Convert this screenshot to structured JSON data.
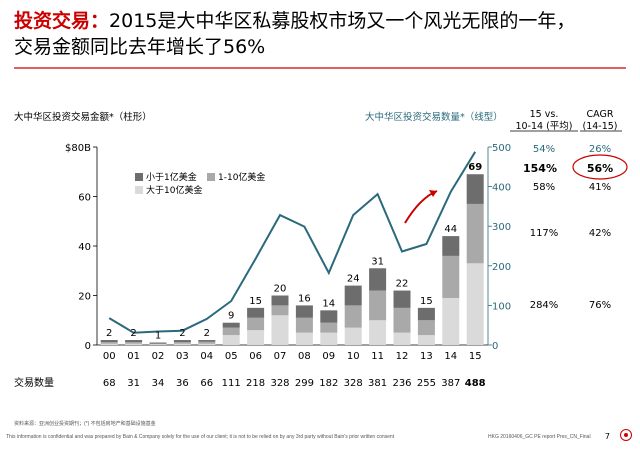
{
  "title": {
    "label": "投资交易：",
    "line1": "2015是大中华区私募股权市场又一个风光无限的一年，",
    "line2": "交易金额同比去年增长了56%"
  },
  "left_axis_title": "大中华区投资交易金额*（柱形）",
  "right_axis_title": "大中华区投资交易数量*（线型）",
  "columns": {
    "col1_header": "15 vs. 10-14 (平均)",
    "col2_header": "CAGR (14-15)",
    "rows": [
      {
        "a": "54%",
        "b": "26%"
      },
      {
        "a": "154%",
        "b": "56%"
      },
      {
        "a": "58%",
        "b": "41%"
      },
      {
        "a": "117%",
        "b": "42%"
      },
      {
        "a": "284%",
        "b": "76%"
      }
    ]
  },
  "deal_count_label": "交易数量",
  "source_note": "资料来源：亚洲创业投资期刊；(*) 不包括房地产和基础设施基金",
  "footer_text": "This information is confidential and was prepared by Bain & Company solely for the use of our client; it is not to be relied on by any 3rd party without Bain's prior written consent",
  "footer_right": "HKG 20160406_GC PE report Pres_CN_Final",
  "page_number": "7",
  "colors": {
    "title_red": "#cc0000",
    "line": "#2a6a7c",
    "accent_red": "#cc0000",
    "dark_bar": "#6d6d6d",
    "mid_bar": "#a9a9a9",
    "light_bar": "#dadada"
  },
  "chart_data": {
    "type": "bar",
    "categories": [
      "00",
      "01",
      "02",
      "03",
      "04",
      "05",
      "06",
      "07",
      "08",
      "09",
      "10",
      "11",
      "12",
      "13",
      "14",
      "15"
    ],
    "ylabel": "",
    "y_ticks": [
      "$80B",
      "60",
      "40",
      "20",
      "0"
    ],
    "ylim": [
      0,
      80
    ],
    "y2_ticks": [
      "500",
      "400",
      "300",
      "200",
      "100",
      "0"
    ],
    "y2lim": [
      0,
      500
    ],
    "series": [
      {
        "name": "大于10亿美金",
        "values": [
          0.5,
          0.5,
          0.3,
          0.5,
          0.5,
          4,
          6,
          12,
          5,
          5,
          7,
          10,
          5,
          4,
          19,
          33
        ]
      },
      {
        "name": "1-10亿美金",
        "values": [
          0.7,
          0.7,
          0.3,
          0.7,
          0.8,
          3,
          5,
          4,
          6,
          4,
          9,
          12,
          10,
          6,
          17,
          24
        ]
      },
      {
        "name": "小于1亿美金",
        "values": [
          0.8,
          0.8,
          0.4,
          0.8,
          0.7,
          2,
          4,
          4,
          5,
          5,
          8,
          9,
          7,
          5,
          8,
          12
        ]
      }
    ],
    "totals": [
      "2",
      "2",
      "1",
      "2",
      "2",
      "9",
      "15",
      "20",
      "16",
      "14",
      "24",
      "31",
      "22",
      "15",
      "44",
      "69"
    ],
    "line_series": {
      "name": "交易数量",
      "values": [
        68,
        31,
        34,
        36,
        66,
        111,
        218,
        328,
        299,
        182,
        328,
        381,
        236,
        255,
        387,
        488
      ]
    },
    "deal_count_labels": [
      "68",
      "31",
      "34",
      "36",
      "66",
      "111",
      "218",
      "328",
      "299",
      "182",
      "328",
      "381",
      "236",
      "255",
      "387",
      "488"
    ]
  }
}
